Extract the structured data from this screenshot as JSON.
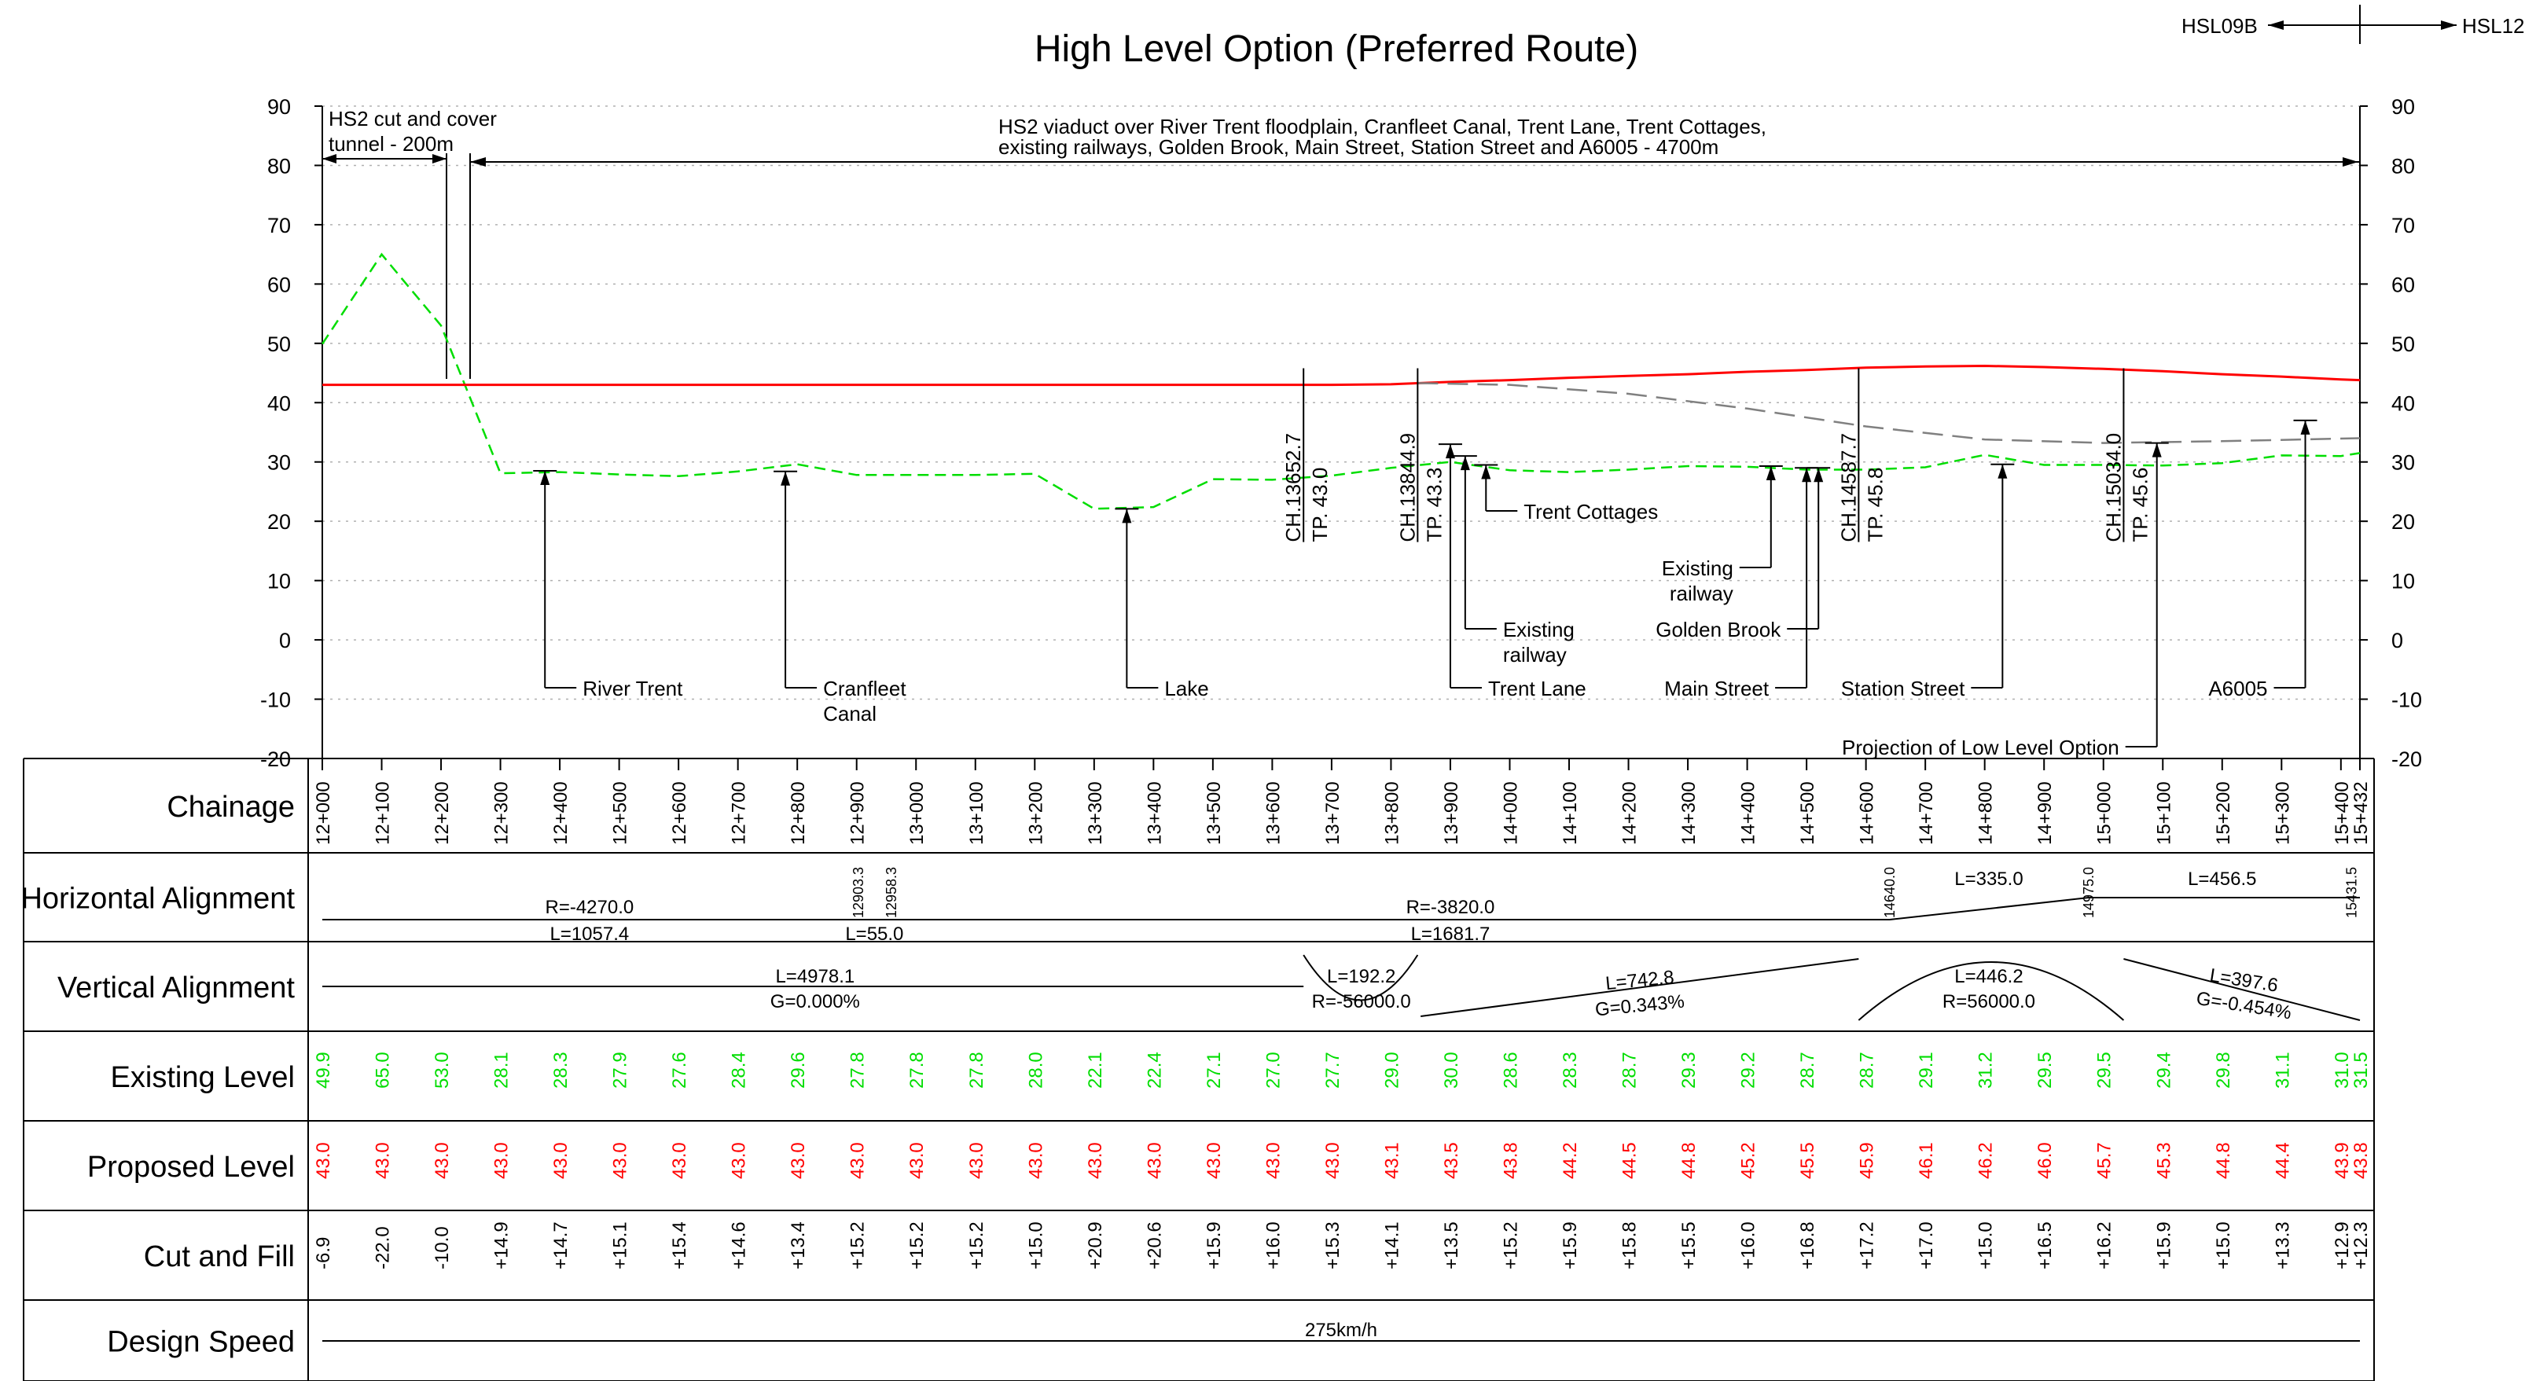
{
  "title": "High Level Option (Preferred Route)",
  "sheet_refs": {
    "left": "HSL09B",
    "right": "HSL12"
  },
  "row_labels": [
    "Chainage",
    "Horizontal Alignment",
    "Vertical Alignment",
    "Existing Level",
    "Proposed Level",
    "Cut and Fill",
    "Design Speed"
  ],
  "y_axis": {
    "ticks": [
      90,
      80,
      70,
      60,
      50,
      40,
      30,
      20,
      10,
      0,
      -10,
      -20
    ],
    "range": [
      -20,
      90
    ]
  },
  "spans": {
    "tunnel": [
      "HS2 cut and cover",
      "tunnel - 200m"
    ],
    "viaduct": [
      "HS2 viaduct over River Trent floodplain, Cranfleet Canal, Trent Lane, Trent Cottages,",
      "existing railways, Golden Brook, Main Street, Station Street and A6005 - 4700m"
    ]
  },
  "features": [
    {
      "label": [
        "River Trent"
      ],
      "chainage": 12375,
      "level": 28.5
    },
    {
      "label": [
        "Cranfleet",
        "Canal"
      ],
      "chainage": 12780,
      "level": 28.4
    },
    {
      "label": [
        "Lake"
      ],
      "chainage": 13355,
      "level": 22.1
    },
    {
      "label": [
        "Trent Lane"
      ],
      "chainage": 13900,
      "level": 33.0
    },
    {
      "label": [
        "Existing",
        "railway"
      ],
      "chainage": 13925,
      "level": 31.0
    },
    {
      "label": [
        "Trent Cottages"
      ],
      "chainage": 13960,
      "level": 29.5
    },
    {
      "label": [
        "Existing",
        "railway"
      ],
      "chainage": 14440,
      "level": 29.3
    },
    {
      "label": [
        "Golden Brook"
      ],
      "chainage": 14520,
      "level": 29.0
    },
    {
      "label": [
        "Main Street"
      ],
      "chainage": 14500,
      "level": 29.0
    },
    {
      "label": [
        "Station Street"
      ],
      "chainage": 14830,
      "level": 29.6
    },
    {
      "label": [
        "Projection of Low Level Option"
      ],
      "chainage": 15090,
      "level": 33.2
    },
    {
      "label": [
        "A6005"
      ],
      "chainage": 15340,
      "level": 37.0
    }
  ],
  "vertical_labels": [
    {
      "chainage": 13652.7,
      "lines": [
        "CH.13652.7",
        "TP. 43.0"
      ]
    },
    {
      "chainage": 13844.9,
      "lines": [
        "CH.13844.9",
        "TP. 43.3"
      ]
    },
    {
      "chainage": 14587.7,
      "lines": [
        "CH.14587.7",
        "TP. 45.8"
      ]
    },
    {
      "chainage": 15034.0,
      "lines": [
        "CH.15034.0",
        "TP. 45.6"
      ]
    }
  ],
  "chart_data": {
    "type": "line",
    "xlabel": "Chainage",
    "ylim": [
      -20,
      90
    ],
    "grid": true,
    "chainages": [
      "12+000",
      "12+100",
      "12+200",
      "12+300",
      "12+400",
      "12+500",
      "12+600",
      "12+700",
      "12+800",
      "12+900",
      "13+000",
      "13+100",
      "13+200",
      "13+300",
      "13+400",
      "13+500",
      "13+600",
      "13+700",
      "13+800",
      "13+900",
      "14+000",
      "14+100",
      "14+200",
      "14+300",
      "14+400",
      "14+500",
      "14+600",
      "14+700",
      "14+800",
      "14+900",
      "15+000",
      "15+100",
      "15+200",
      "15+300",
      "15+400",
      "15+432"
    ],
    "existing_level": [
      "49.9",
      "65.0",
      "53.0",
      "28.1",
      "28.3",
      "27.9",
      "27.6",
      "28.4",
      "29.6",
      "27.8",
      "27.8",
      "27.8",
      "28.0",
      "22.1",
      "22.4",
      "27.1",
      "27.0",
      "27.7",
      "29.0",
      "30.0",
      "28.6",
      "28.3",
      "28.7",
      "29.3",
      "29.2",
      "28.7",
      "28.7",
      "29.1",
      "31.2",
      "29.5",
      "29.5",
      "29.4",
      "29.8",
      "31.1",
      "31.0",
      "31.5"
    ],
    "proposed_level": [
      "43.0",
      "43.0",
      "43.0",
      "43.0",
      "43.0",
      "43.0",
      "43.0",
      "43.0",
      "43.0",
      "43.0",
      "43.0",
      "43.0",
      "43.0",
      "43.0",
      "43.0",
      "43.0",
      "43.0",
      "43.0",
      "43.1",
      "43.5",
      "43.8",
      "44.2",
      "44.5",
      "44.8",
      "45.2",
      "45.5",
      "45.9",
      "46.1",
      "46.2",
      "46.0",
      "45.7",
      "45.3",
      "44.8",
      "44.4",
      "43.9",
      "43.8"
    ],
    "cut_and_fill": [
      "-6.9",
      "-22.0",
      "-10.0",
      "+14.9",
      "+14.7",
      "+15.1",
      "+15.4",
      "+14.6",
      "+13.4",
      "+15.2",
      "+15.2",
      "+15.2",
      "+15.0",
      "+20.9",
      "+20.6",
      "+15.9",
      "+16.0",
      "+15.3",
      "+14.1",
      "+13.5",
      "+15.2",
      "+15.9",
      "+15.8",
      "+15.5",
      "+16.0",
      "+16.8",
      "+17.2",
      "+17.0",
      "+15.0",
      "+16.5",
      "+16.2",
      "+15.9",
      "+15.0",
      "+13.3",
      "+12.9",
      "+12.3"
    ],
    "low_level_projection": [
      {
        "x": 13844.9,
        "y": 43.3
      },
      {
        "x": 14000,
        "y": 43.0
      },
      {
        "x": 14200,
        "y": 41.5
      },
      {
        "x": 14400,
        "y": 39.0
      },
      {
        "x": 14600,
        "y": 36.0
      },
      {
        "x": 14800,
        "y": 33.8
      },
      {
        "x": 15000,
        "y": 33.2
      },
      {
        "x": 15200,
        "y": 33.5
      },
      {
        "x": 15432,
        "y": 34.0
      }
    ]
  },
  "horizontal_alignment": {
    "elements": [
      {
        "r": "R=-4270.0",
        "l": "L=1057.4"
      },
      {
        "l": "L=55.0"
      },
      {
        "r": "R=-3820.0",
        "l": "L=1681.7"
      },
      {
        "l": "L=335.0"
      },
      {
        "l": "L=456.5"
      }
    ],
    "chainage_marks": [
      "12903.3",
      "12958.3",
      "14640.0",
      "14975.0",
      "15431.5"
    ]
  },
  "vertical_alignment": {
    "elements": [
      {
        "l": "L=4978.1",
        "g": "G=0.000%"
      },
      {
        "l": "L=192.2",
        "r": "R=-56000.0"
      },
      {
        "l": "L=742.8",
        "g": "G=0.343%"
      },
      {
        "l": "L=446.2",
        "r": "R=56000.0"
      },
      {
        "l": "L=397.6",
        "g": "G=-0.454%"
      }
    ]
  },
  "design_speed": "275km/h",
  "colors": {
    "existing": "#00dd00",
    "proposed": "#ff0000",
    "projection": "#808080",
    "grid": "#b0b0b0"
  }
}
